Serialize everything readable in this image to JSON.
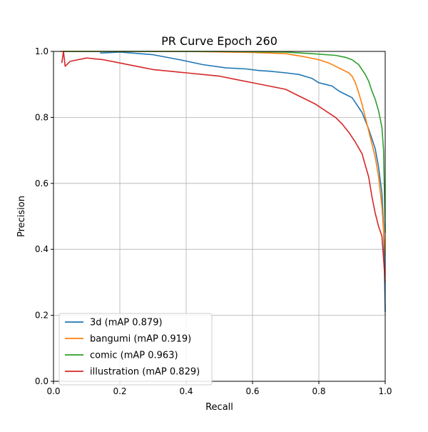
{
  "chart_data": {
    "type": "line",
    "title": "PR Curve Epoch 260",
    "xlabel": "Recall",
    "ylabel": "Precision",
    "xlim": [
      0,
      1
    ],
    "ylim": [
      0,
      1
    ],
    "xticks": [
      "0.0",
      "0.2",
      "0.4",
      "0.6",
      "0.8",
      "1.0"
    ],
    "yticks": [
      "0.0",
      "0.2",
      "0.4",
      "0.6",
      "0.8",
      "1.0"
    ],
    "grid": true,
    "legend_position": "lower-left",
    "series": [
      {
        "name": "3d (mAP 0.879)",
        "color": "#1f77b4",
        "points": [
          [
            0.14,
            0.995
          ],
          [
            0.2,
            0.998
          ],
          [
            0.3,
            0.99
          ],
          [
            0.38,
            0.975
          ],
          [
            0.45,
            0.96
          ],
          [
            0.52,
            0.95
          ],
          [
            0.58,
            0.947
          ],
          [
            0.62,
            0.942
          ],
          [
            0.65,
            0.94
          ],
          [
            0.7,
            0.935
          ],
          [
            0.74,
            0.93
          ],
          [
            0.78,
            0.918
          ],
          [
            0.8,
            0.905
          ],
          [
            0.82,
            0.9
          ],
          [
            0.84,
            0.895
          ],
          [
            0.86,
            0.88
          ],
          [
            0.88,
            0.87
          ],
          [
            0.9,
            0.86
          ],
          [
            0.91,
            0.845
          ],
          [
            0.92,
            0.83
          ],
          [
            0.93,
            0.815
          ],
          [
            0.94,
            0.79
          ],
          [
            0.95,
            0.765
          ],
          [
            0.96,
            0.735
          ],
          [
            0.97,
            0.705
          ],
          [
            0.98,
            0.65
          ],
          [
            0.99,
            0.57
          ],
          [
            0.995,
            0.47
          ],
          [
            1.0,
            0.21
          ]
        ]
      },
      {
        "name": "bangumi (mAP 0.919)",
        "color": "#ff7f0e",
        "points": [
          [
            0.02,
            1.0
          ],
          [
            0.4,
            1.0
          ],
          [
            0.6,
            0.997
          ],
          [
            0.7,
            0.993
          ],
          [
            0.75,
            0.985
          ],
          [
            0.8,
            0.975
          ],
          [
            0.83,
            0.965
          ],
          [
            0.85,
            0.955
          ],
          [
            0.87,
            0.945
          ],
          [
            0.88,
            0.94
          ],
          [
            0.89,
            0.935
          ],
          [
            0.9,
            0.925
          ],
          [
            0.91,
            0.905
          ],
          [
            0.92,
            0.875
          ],
          [
            0.93,
            0.84
          ],
          [
            0.94,
            0.8
          ],
          [
            0.95,
            0.76
          ],
          [
            0.96,
            0.72
          ],
          [
            0.97,
            0.68
          ],
          [
            0.98,
            0.62
          ],
          [
            0.99,
            0.53
          ],
          [
            1.0,
            0.38
          ]
        ]
      },
      {
        "name": "comic (mAP 0.963)",
        "color": "#2ca02c",
        "points": [
          [
            0.03,
            1.0
          ],
          [
            0.5,
            1.0
          ],
          [
            0.7,
            0.998
          ],
          [
            0.78,
            0.993
          ],
          [
            0.85,
            0.988
          ],
          [
            0.88,
            0.982
          ],
          [
            0.9,
            0.975
          ],
          [
            0.92,
            0.96
          ],
          [
            0.93,
            0.945
          ],
          [
            0.94,
            0.93
          ],
          [
            0.95,
            0.91
          ],
          [
            0.96,
            0.88
          ],
          [
            0.97,
            0.855
          ],
          [
            0.98,
            0.82
          ],
          [
            0.99,
            0.77
          ],
          [
            0.995,
            0.7
          ],
          [
            1.0,
            0.45
          ]
        ]
      },
      {
        "name": "illustration (mAP 0.829)",
        "color": "#d62728",
        "points": [
          [
            0.025,
            0.965
          ],
          [
            0.03,
            1.0
          ],
          [
            0.035,
            0.955
          ],
          [
            0.05,
            0.97
          ],
          [
            0.1,
            0.98
          ],
          [
            0.15,
            0.975
          ],
          [
            0.2,
            0.965
          ],
          [
            0.25,
            0.955
          ],
          [
            0.3,
            0.945
          ],
          [
            0.35,
            0.94
          ],
          [
            0.4,
            0.935
          ],
          [
            0.45,
            0.93
          ],
          [
            0.5,
            0.925
          ],
          [
            0.55,
            0.915
          ],
          [
            0.6,
            0.905
          ],
          [
            0.65,
            0.895
          ],
          [
            0.7,
            0.885
          ],
          [
            0.73,
            0.87
          ],
          [
            0.76,
            0.855
          ],
          [
            0.79,
            0.84
          ],
          [
            0.82,
            0.82
          ],
          [
            0.85,
            0.8
          ],
          [
            0.87,
            0.78
          ],
          [
            0.89,
            0.755
          ],
          [
            0.91,
            0.725
          ],
          [
            0.93,
            0.69
          ],
          [
            0.94,
            0.655
          ],
          [
            0.95,
            0.62
          ],
          [
            0.96,
            0.56
          ],
          [
            0.97,
            0.51
          ],
          [
            0.98,
            0.47
          ],
          [
            0.99,
            0.44
          ],
          [
            1.0,
            0.3
          ]
        ]
      }
    ]
  }
}
